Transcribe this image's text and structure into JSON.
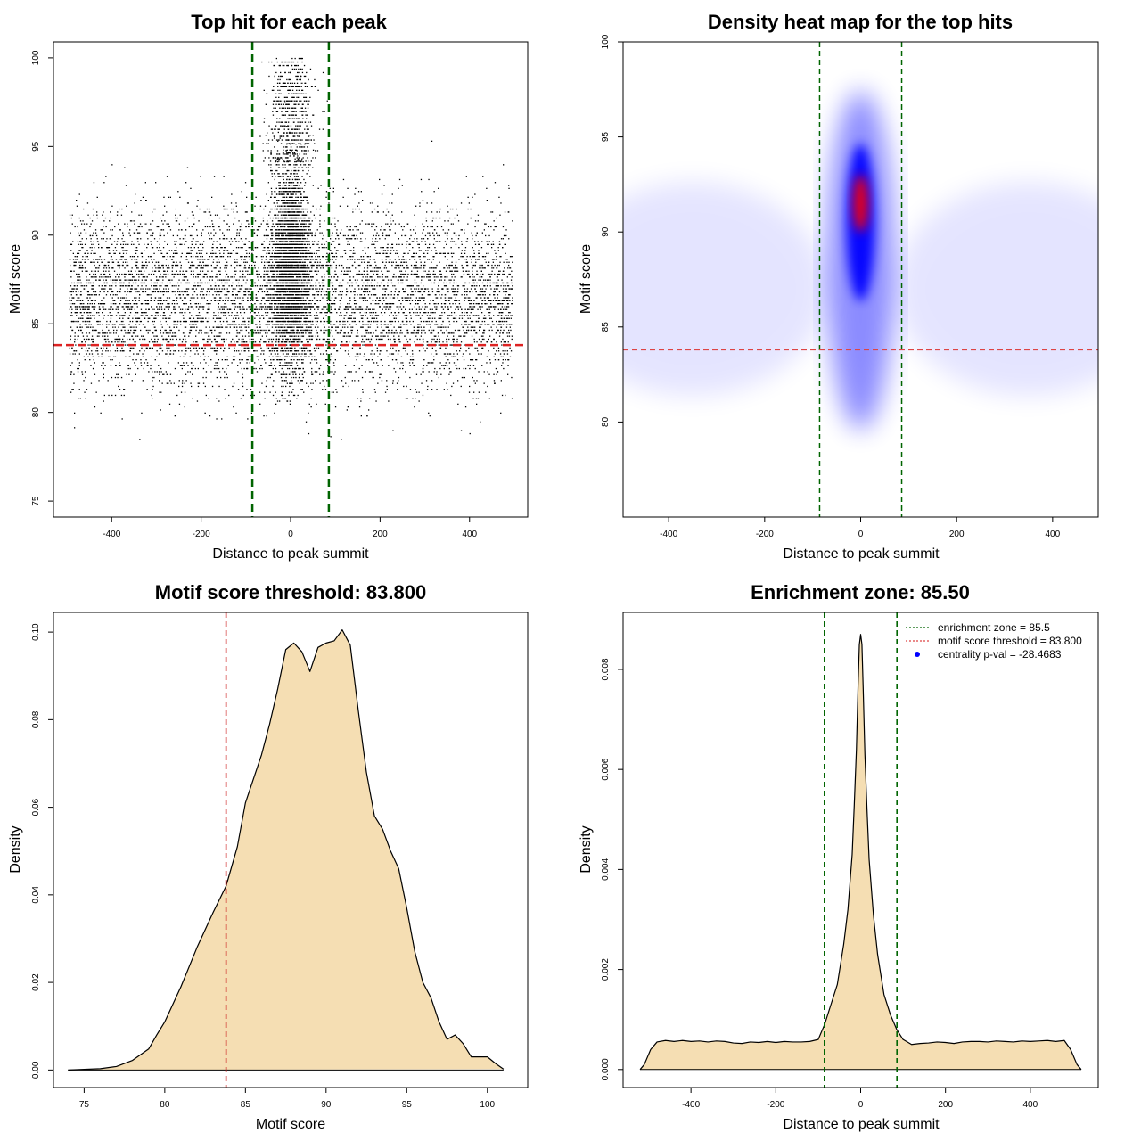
{
  "chart_data": [
    {
      "type": "scatter",
      "title": "Top hit for each peak",
      "xlabel": "Distance to peak summit",
      "ylabel": "Motif score",
      "xlim": [
        -530,
        530
      ],
      "ylim": [
        74.1,
        100.9
      ],
      "xticks": [
        -400,
        -200,
        0,
        200,
        400
      ],
      "yticks": [
        75,
        80,
        85,
        90,
        95,
        100
      ],
      "xtick_labels": [
        "-400",
        "-200",
        "0",
        "200",
        "400"
      ],
      "ytick_labels": [
        "75",
        "80",
        "85",
        "90",
        "95",
        "100"
      ],
      "vlines": [
        -85.5,
        85.5
      ],
      "vline_color": "#006400",
      "hlines": [
        83.8
      ],
      "hline_color": "#dd2222",
      "point_color": "#000000",
      "distribution": {
        "x_range": [
          -495,
          495
        ],
        "central_peak_x": 0,
        "central_peak_y": 88.5,
        "background_y_range": [
          75.5,
          99.3
        ],
        "central_y_range": [
          83,
          100
        ]
      }
    },
    {
      "type": "heatmap",
      "title": "Density heat map for the top hits",
      "xlabel": "Distance to peak summit",
      "ylabel": "Motif score",
      "xlim": [
        -495,
        495
      ],
      "ylim": [
        75,
        100
      ],
      "xticks": [
        -400,
        -200,
        0,
        200,
        400
      ],
      "yticks": [
        80,
        85,
        90,
        95,
        100
      ],
      "xtick_labels": [
        "-400",
        "-200",
        "0",
        "200",
        "400"
      ],
      "ytick_labels": [
        "80",
        "85",
        "90",
        "95",
        "100"
      ],
      "vlines": [
        -85.5,
        85.5
      ],
      "vline_color": "#006400",
      "hlines": [
        83.8
      ],
      "hline_color": "#dd4444",
      "colors": [
        "#ffffff",
        "#0000ff",
        "#ff0000"
      ],
      "hotspot": {
        "x": 0,
        "y": 91.5
      }
    },
    {
      "type": "area",
      "title": "Motif score threshold: 83.800",
      "xlabel": "Motif score",
      "ylabel": "Density",
      "xlim": [
        73.1,
        102.5
      ],
      "ylim": [
        -0.004,
        0.1045
      ],
      "xticks": [
        75,
        80,
        85,
        90,
        95,
        100
      ],
      "yticks": [
        0.0,
        0.02,
        0.04,
        0.06,
        0.08,
        0.1
      ],
      "xtick_labels": [
        "75",
        "80",
        "85",
        "90",
        "95",
        "100"
      ],
      "ytick_labels": [
        "0.00",
        "0.02",
        "0.04",
        "0.06",
        "0.08",
        "0.10"
      ],
      "fill_color": "#f5deb3",
      "vlines": [
        83.8
      ],
      "vline_color": "#cc2222",
      "x": [
        74,
        76,
        77,
        78,
        79,
        79.5,
        80,
        81,
        82,
        83,
        83.8,
        84.5,
        85,
        86,
        86.5,
        87,
        87.5,
        88,
        88.5,
        89,
        89.5,
        90,
        90.5,
        91,
        91.5,
        92,
        92.5,
        93,
        93.5,
        94,
        94.5,
        95,
        95.5,
        96,
        96.5,
        97,
        97.5,
        98,
        98.5,
        99,
        100,
        100.5,
        101
      ],
      "y": [
        0.0,
        0.0003,
        0.0008,
        0.0022,
        0.0048,
        0.008,
        0.011,
        0.019,
        0.028,
        0.036,
        0.042,
        0.051,
        0.061,
        0.072,
        0.079,
        0.087,
        0.096,
        0.0975,
        0.0955,
        0.091,
        0.0965,
        0.0975,
        0.098,
        0.1005,
        0.097,
        0.082,
        0.068,
        0.058,
        0.055,
        0.05,
        0.046,
        0.037,
        0.027,
        0.02,
        0.0165,
        0.011,
        0.007,
        0.008,
        0.006,
        0.003,
        0.003,
        0.0015,
        0.0002
      ]
    },
    {
      "type": "area",
      "title": "Enrichment zone: 85.50",
      "xlabel": "Distance to peak summit",
      "ylabel": "Density",
      "xlim": [
        -560,
        560
      ],
      "ylim": [
        -0.00036,
        0.00914
      ],
      "xticks": [
        -400,
        -200,
        0,
        200,
        400
      ],
      "yticks": [
        0.0,
        0.002,
        0.004,
        0.006,
        0.008
      ],
      "xtick_labels": [
        "-400",
        "-200",
        "0",
        "200",
        "400"
      ],
      "ytick_labels": [
        "0.000",
        "0.002",
        "0.004",
        "0.006",
        "0.008"
      ],
      "fill_color": "#f5deb3",
      "vlines": [
        -85.5,
        85.5
      ],
      "vline_color": "#006400",
      "legend": {
        "position": "top-right",
        "entries": [
          {
            "label": "enrichment zone = 85.5",
            "color": "#006400",
            "kind": "line"
          },
          {
            "label": "motif score threshold = 83.800",
            "color": "#dd4444",
            "kind": "line"
          },
          {
            "label": "centrality p-val = -28.4683",
            "color": "#0000ff",
            "kind": "point"
          }
        ]
      },
      "x": [
        -520,
        -510,
        -495,
        -480,
        -460,
        -440,
        -420,
        -400,
        -380,
        -360,
        -340,
        -320,
        -300,
        -280,
        -260,
        -240,
        -220,
        -200,
        -180,
        -160,
        -140,
        -120,
        -100,
        -85,
        -70,
        -55,
        -40,
        -30,
        -20,
        -15,
        -10,
        -6,
        -3,
        0,
        3,
        6,
        10,
        15,
        20,
        30,
        40,
        55,
        70,
        85,
        100,
        120,
        140,
        160,
        180,
        200,
        220,
        240,
        260,
        280,
        300,
        320,
        340,
        360,
        380,
        400,
        420,
        440,
        460,
        480,
        495,
        510,
        520
      ],
      "y": [
        0.0,
        0.0001,
        0.0004,
        0.00055,
        0.00058,
        0.00056,
        0.00058,
        0.00056,
        0.00057,
        0.00055,
        0.00057,
        0.00056,
        0.00053,
        0.00052,
        0.00055,
        0.00054,
        0.00056,
        0.00054,
        0.00056,
        0.00055,
        0.00055,
        0.00056,
        0.0006,
        0.0009,
        0.0013,
        0.0017,
        0.0025,
        0.0032,
        0.0043,
        0.0053,
        0.0064,
        0.0077,
        0.0085,
        0.0087,
        0.0085,
        0.0076,
        0.0063,
        0.0052,
        0.0042,
        0.0031,
        0.0023,
        0.0015,
        0.0011,
        0.0008,
        0.0006,
        0.0005,
        0.00052,
        0.00053,
        0.00055,
        0.00054,
        0.00052,
        0.00055,
        0.00056,
        0.00056,
        0.00055,
        0.00057,
        0.00056,
        0.00055,
        0.00057,
        0.00056,
        0.00057,
        0.00058,
        0.00056,
        0.00058,
        0.0004,
        0.0001,
        0.0
      ]
    }
  ]
}
